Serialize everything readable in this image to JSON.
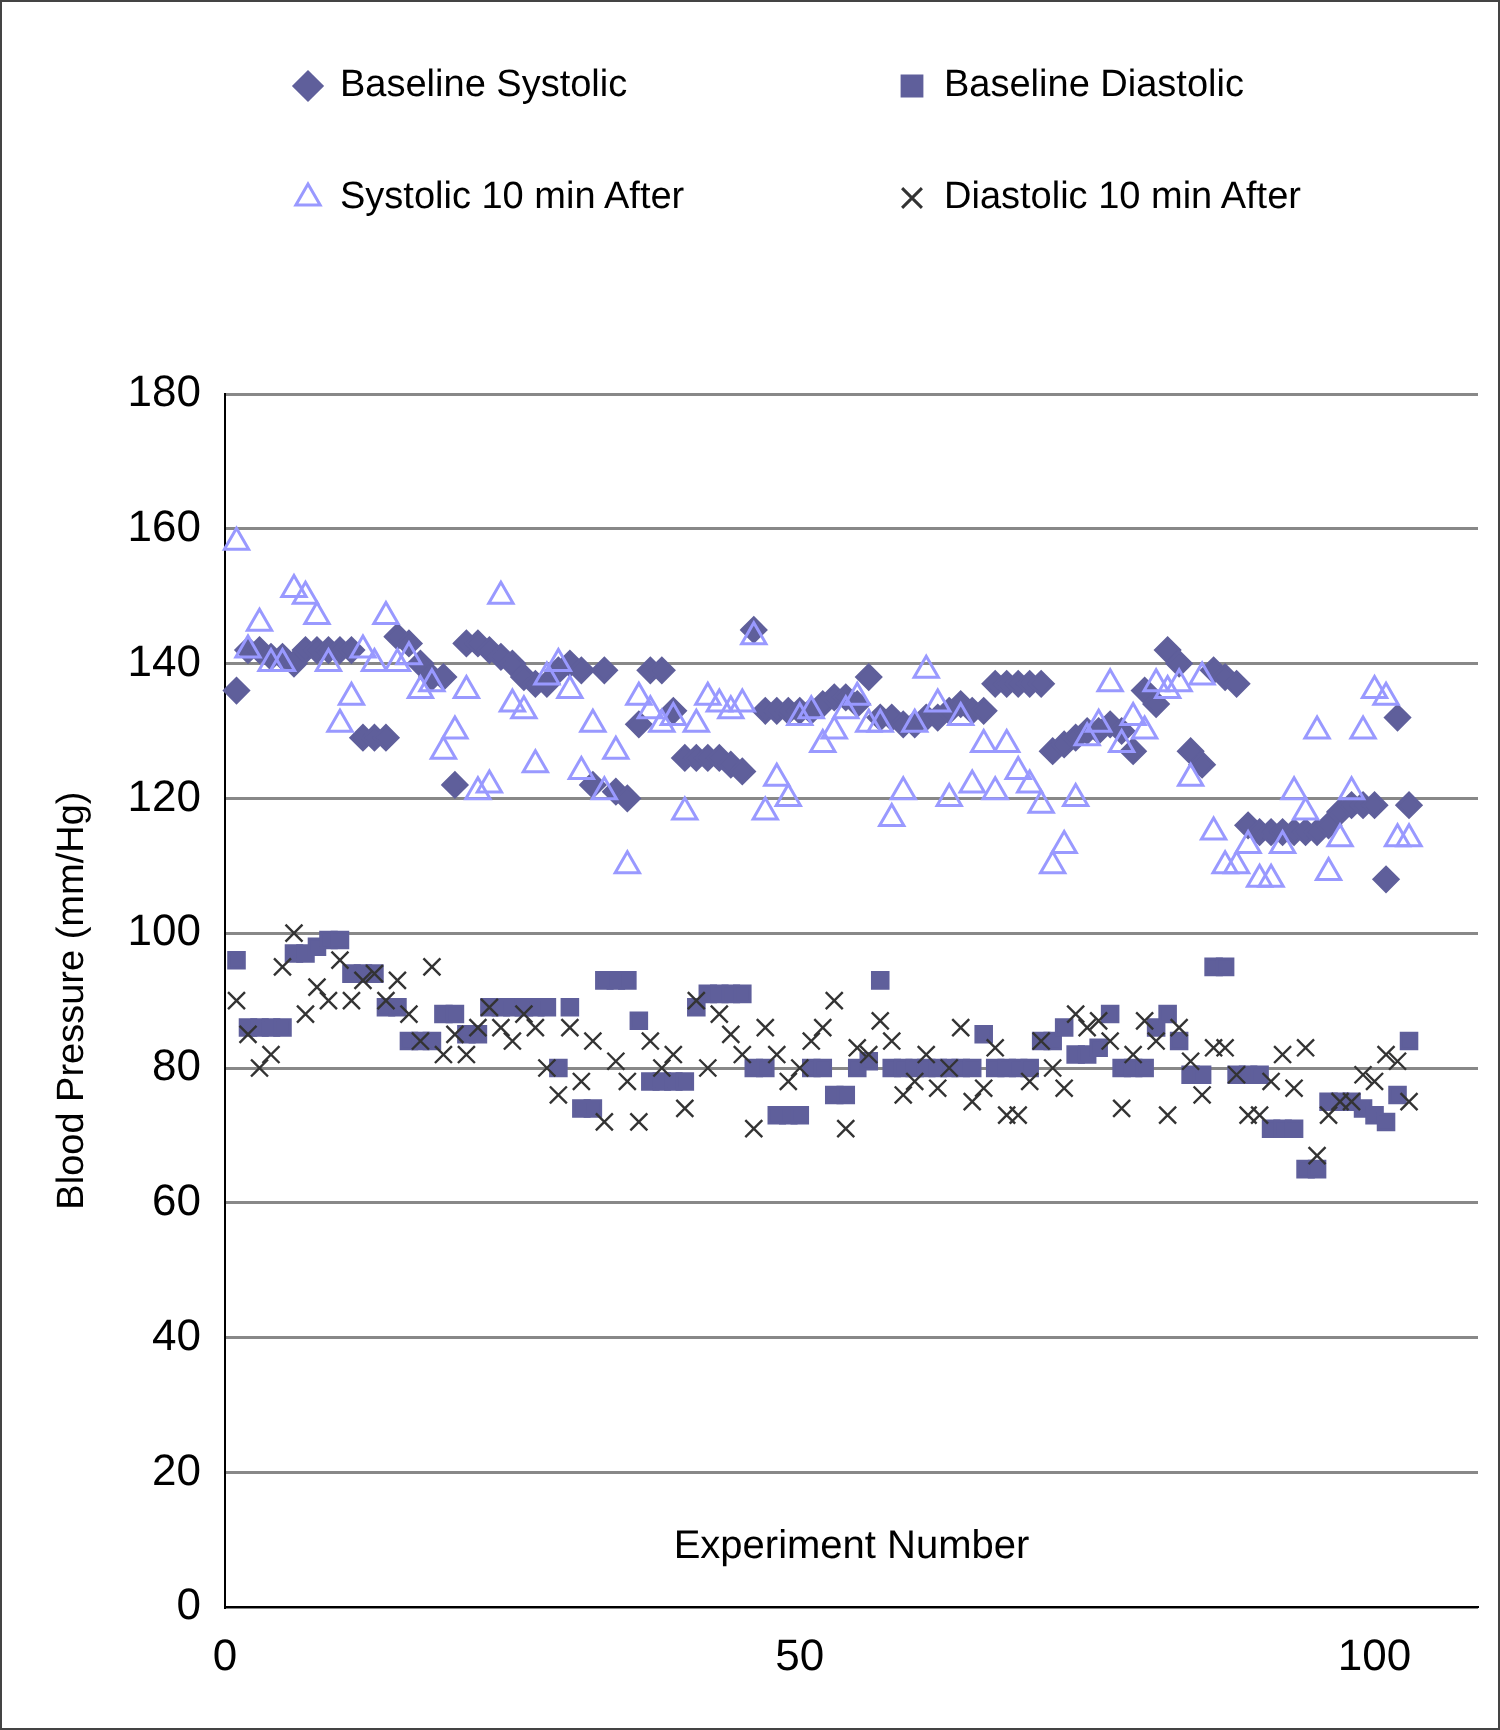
{
  "chart_data": {
    "type": "scatter",
    "xlabel": "Experiment Number",
    "ylabel": "Blood Pressure (mm/Hg)",
    "x": [
      1,
      2,
      3,
      4,
      5,
      6,
      7,
      8,
      9,
      10,
      11,
      12,
      13,
      14,
      15,
      16,
      17,
      18,
      19,
      20,
      21,
      22,
      23,
      24,
      25,
      26,
      27,
      28,
      29,
      30,
      31,
      32,
      33,
      34,
      35,
      36,
      37,
      38,
      39,
      40,
      41,
      42,
      43,
      44,
      45,
      46,
      47,
      48,
      49,
      50,
      51,
      52,
      53,
      54,
      55,
      56,
      57,
      58,
      59,
      60,
      61,
      62,
      63,
      64,
      65,
      66,
      67,
      68,
      69,
      70,
      71,
      72,
      73,
      74,
      75,
      76,
      77,
      78,
      79,
      80,
      81,
      82,
      83,
      84,
      85,
      86,
      87,
      88,
      89,
      90,
      91,
      92,
      93,
      94,
      95,
      96,
      97,
      98,
      99,
      100,
      101,
      102,
      103
    ],
    "series": [
      {
        "name": "Baseline Systolic",
        "color": "#5f5f9b",
        "marker": "diamond",
        "values": [
          136,
          142,
          142,
          141,
          141,
          140,
          142,
          142,
          142,
          142,
          142,
          129,
          129,
          129,
          144,
          143,
          140,
          138,
          138,
          122,
          143,
          143,
          142,
          141,
          140,
          138,
          137,
          137,
          139,
          140,
          139,
          122,
          139,
          121,
          120,
          131,
          139,
          139,
          133,
          126,
          126,
          126,
          126,
          125,
          124,
          145,
          133,
          133,
          133,
          133,
          133,
          134,
          135,
          135,
          134,
          138,
          132,
          132,
          131,
          131,
          132,
          132,
          133,
          134,
          133,
          133,
          137,
          137,
          137,
          137,
          137,
          127,
          128,
          129,
          130,
          130,
          131,
          130,
          127,
          136,
          134,
          142,
          140,
          127,
          125,
          139,
          138,
          137,
          116,
          115,
          115,
          115,
          115,
          115,
          115,
          116,
          118,
          119,
          119,
          119,
          108,
          132,
          119
        ]
      },
      {
        "name": "Baseline Diastolic",
        "color": "#5f5f9b",
        "marker": "square",
        "values": [
          96,
          86,
          86,
          86,
          86,
          97,
          97,
          98,
          99,
          99,
          94,
          94,
          94,
          89,
          89,
          84,
          84,
          84,
          88,
          88,
          85,
          85,
          89,
          89,
          89,
          89,
          89,
          89,
          80,
          89,
          74,
          74,
          93,
          93,
          93,
          87,
          78,
          78,
          78,
          78,
          89,
          91,
          91,
          91,
          91,
          80,
          80,
          73,
          73,
          73,
          80,
          80,
          76,
          76,
          80,
          81,
          93,
          80,
          80,
          80,
          80,
          80,
          80,
          80,
          80,
          85,
          80,
          80,
          80,
          80,
          84,
          84,
          86,
          82,
          82,
          83,
          88,
          80,
          80,
          80,
          86,
          88,
          84,
          79,
          79,
          95,
          95,
          79,
          79,
          79,
          71,
          71,
          71,
          65,
          65,
          75,
          75,
          75,
          74,
          73,
          72,
          76,
          84
        ]
      },
      {
        "name": "Systolic 10 min After",
        "color": "#9999ff",
        "marker": "triangle",
        "values": [
          158,
          142,
          146,
          140,
          140,
          151,
          150,
          147,
          140,
          131,
          135,
          142,
          140,
          147,
          140,
          141,
          136,
          137,
          127,
          130,
          136,
          121,
          122,
          150,
          134,
          133,
          125,
          138,
          140,
          136,
          124,
          131,
          121,
          127,
          110,
          135,
          133,
          131,
          132,
          118,
          131,
          135,
          134,
          133,
          134,
          144,
          118,
          123,
          120,
          132,
          133,
          128,
          130,
          133,
          135,
          131,
          131,
          117,
          121,
          131,
          139,
          134,
          120,
          132,
          122,
          128,
          121,
          128,
          124,
          122,
          119,
          110,
          113,
          120,
          129,
          131,
          137,
          128,
          132,
          130,
          137,
          136,
          137,
          123,
          138,
          115,
          110,
          110,
          113,
          108,
          108,
          113,
          121,
          118,
          130,
          109,
          114,
          121,
          130,
          136,
          135,
          114,
          114
        ]
      },
      {
        "name": "Diastolic 10 min After",
        "color": "#333333",
        "marker": "cross",
        "values": [
          90,
          85,
          80,
          82,
          95,
          100,
          88,
          92,
          90,
          96,
          90,
          93,
          94,
          90,
          93,
          88,
          84,
          95,
          82,
          85,
          82,
          86,
          89,
          86,
          84,
          88,
          86,
          80,
          76,
          86,
          78,
          84,
          72,
          81,
          78,
          72,
          84,
          80,
          82,
          74,
          90,
          80,
          88,
          85,
          82,
          71,
          86,
          82,
          78,
          80,
          84,
          86,
          90,
          71,
          83,
          82,
          87,
          84,
          76,
          78,
          82,
          77,
          80,
          86,
          75,
          77,
          83,
          73,
          73,
          78,
          84,
          80,
          77,
          88,
          86,
          87,
          84,
          74,
          82,
          87,
          84,
          73,
          86,
          81,
          76,
          83,
          83,
          79,
          73,
          73,
          78,
          82,
          77,
          83,
          67,
          73,
          75,
          75,
          79,
          78,
          82,
          81,
          75
        ]
      }
    ],
    "xlim": [
      0,
      109
    ],
    "xticks": [
      0,
      50,
      100
    ],
    "ylim": [
      0,
      180
    ],
    "yticks": [
      0,
      20,
      40,
      60,
      80,
      100,
      120,
      140,
      160,
      180
    ],
    "grid": "y",
    "legend": "top"
  }
}
